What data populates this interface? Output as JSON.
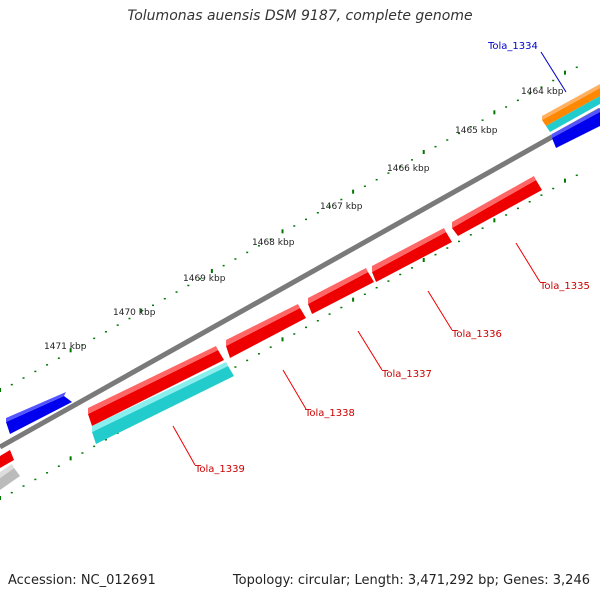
{
  "title": "Tolumonas auensis DSM 9187, complete genome",
  "footer": {
    "accession": "Accession: NC_012691",
    "summary": "Topology: circular; Length: 3,471,292 bp; Genes: 3,246"
  },
  "ruler": {
    "labels": [
      "1464 kbp",
      "1465 kbp",
      "1466 kbp",
      "1467 kbp",
      "1468 kbp",
      "1469 kbp",
      "1470 kbp",
      "1471 kbp"
    ]
  },
  "genes": [
    {
      "name": "Tola_1334",
      "color": "#0000cc"
    },
    {
      "name": "Tola_1335",
      "color": "#cc0000"
    },
    {
      "name": "Tola_1336",
      "color": "#cc0000"
    },
    {
      "name": "Tola_1337",
      "color": "#cc0000"
    },
    {
      "name": "Tola_1338",
      "color": "#cc0000"
    },
    {
      "name": "Tola_1339",
      "color": "#cc0000"
    }
  ],
  "colors": {
    "cds": "#ee0000",
    "rna": "#22cccc",
    "gene_blue": "#0000ee",
    "orange": "#ff8800",
    "backbone": "#888888",
    "ruler": "#006600"
  }
}
